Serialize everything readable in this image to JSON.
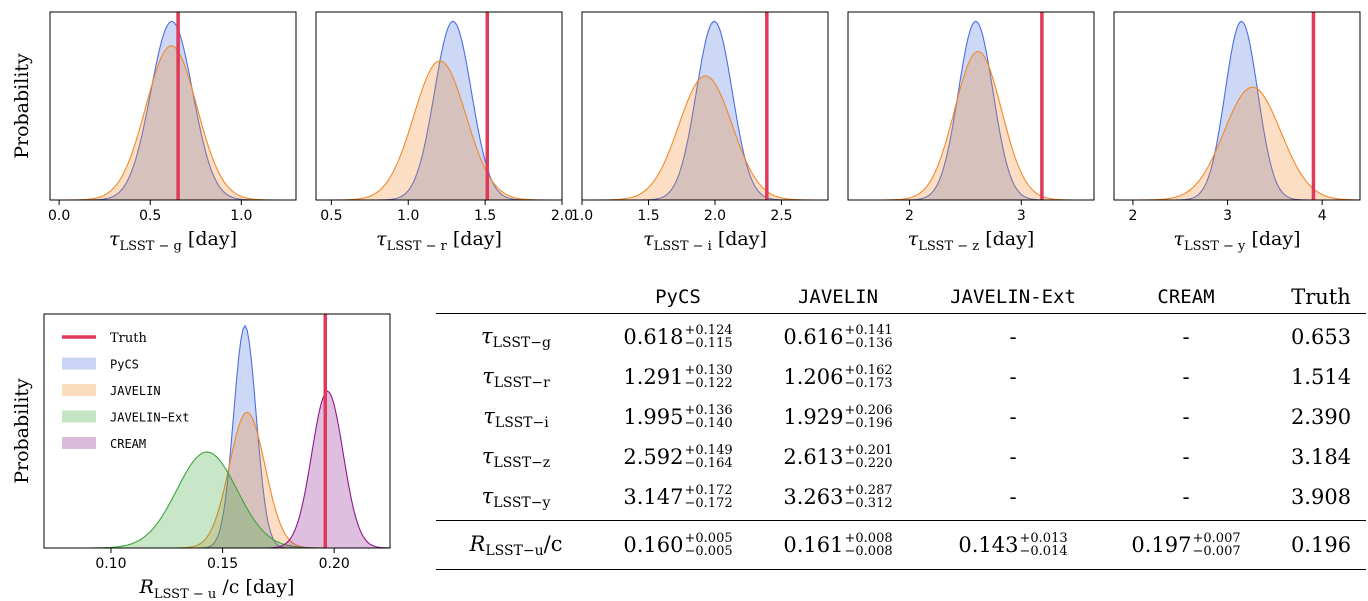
{
  "chart_data": [
    {
      "type": "area",
      "xlabel": "τ_LSST−g [day]",
      "xlabel_main": "τ",
      "xlabel_sub": "LSST − g",
      "xlabel_unit": "[day]",
      "ylabel": "Probability",
      "xlim": [
        -0.05,
        1.3
      ],
      "xticks": [
        "0.0",
        "0.5",
        "1.0"
      ],
      "truth": 0.653,
      "series": [
        {
          "name": "PyCS",
          "mean": 0.618,
          "sd": 0.115,
          "peak": 0.95
        },
        {
          "name": "JAVELIN",
          "mean": 0.616,
          "sd": 0.14,
          "peak": 0.82
        }
      ]
    },
    {
      "type": "area",
      "xlabel": "τ_LSST−r [day]",
      "xlabel_main": "τ",
      "xlabel_sub": "LSST − r",
      "xlabel_unit": "[day]",
      "xlim": [
        0.4,
        2.0
      ],
      "xticks": [
        "0.5",
        "1.0",
        "1.5",
        "2.0"
      ],
      "truth": 1.514,
      "series": [
        {
          "name": "PyCS",
          "mean": 1.291,
          "sd": 0.12,
          "peak": 0.95
        },
        {
          "name": "JAVELIN",
          "mean": 1.206,
          "sd": 0.17,
          "peak": 0.74
        }
      ]
    },
    {
      "type": "area",
      "xlabel": "τ_LSST−i [day]",
      "xlabel_main": "τ",
      "xlabel_sub": "LSST − i",
      "xlabel_unit": "[day]",
      "xlim": [
        1.0,
        2.85
      ],
      "xticks": [
        "1.0",
        "1.5",
        "2.0",
        "2.5"
      ],
      "truth": 2.39,
      "series": [
        {
          "name": "PyCS",
          "mean": 1.995,
          "sd": 0.135,
          "peak": 0.95
        },
        {
          "name": "JAVELIN",
          "mean": 1.929,
          "sd": 0.2,
          "peak": 0.66
        }
      ]
    },
    {
      "type": "area",
      "xlabel": "τ_LSST−z [day]",
      "xlabel_main": "τ",
      "xlabel_sub": "LSST − z",
      "xlabel_unit": "[day]",
      "xlim": [
        1.45,
        3.65
      ],
      "xticks": [
        "2",
        "3"
      ],
      "truth": 3.184,
      "series": [
        {
          "name": "PyCS",
          "mean": 2.592,
          "sd": 0.155,
          "peak": 0.95
        },
        {
          "name": "JAVELIN",
          "mean": 2.613,
          "sd": 0.21,
          "peak": 0.79
        }
      ]
    },
    {
      "type": "area",
      "xlabel": "τ_LSST−y [day]",
      "xlabel_main": "τ",
      "xlabel_sub": "LSST − y",
      "xlabel_unit": "[day]",
      "xlim": [
        1.8,
        4.4
      ],
      "xticks": [
        "2",
        "3",
        "4"
      ],
      "truth": 3.908,
      "series": [
        {
          "name": "PyCS",
          "mean": 3.147,
          "sd": 0.172,
          "peak": 0.95
        },
        {
          "name": "JAVELIN",
          "mean": 3.263,
          "sd": 0.3,
          "peak": 0.6
        }
      ]
    },
    {
      "type": "area",
      "xlabel": "R_LSST−u/c [day]",
      "xlabel_main": "R",
      "xlabel_sub": "LSST − u",
      "xlabel_unit": "/c [day]",
      "ylabel": "Probability",
      "xlim": [
        0.07,
        0.225
      ],
      "xticks": [
        "0.10",
        "0.15",
        "0.20"
      ],
      "truth": 0.196,
      "legend_position": "top-left",
      "series": [
        {
          "name": "PyCS",
          "mean": 0.16,
          "sd": 0.005,
          "peak": 0.95
        },
        {
          "name": "JAVELIN",
          "mean": 0.161,
          "sd": 0.008,
          "peak": 0.58
        },
        {
          "name": "JAVELIN−Ext",
          "mean": 0.143,
          "sd": 0.0135,
          "peak": 0.41
        },
        {
          "name": "CREAM",
          "mean": 0.197,
          "sd": 0.007,
          "peak": 0.67
        }
      ]
    }
  ],
  "legend": [
    {
      "label": "Truth",
      "color": "#e0395a",
      "kind": "line",
      "mono": false
    },
    {
      "label": "PyCS",
      "color": "#4c6fe0",
      "kind": "patch",
      "mono": true
    },
    {
      "label": "JAVELIN",
      "color": "#f08a2c",
      "kind": "patch",
      "mono": true
    },
    {
      "label": "JAVELIN−Ext",
      "color": "#3aa63a",
      "kind": "patch",
      "mono": true
    },
    {
      "label": "CREAM",
      "color": "#8b1a8b",
      "kind": "patch",
      "mono": true
    }
  ],
  "colors": {
    "pycs": "#4c6fe0",
    "javelin": "#f08a2c",
    "javelin_ext": "#3aa63a",
    "cream": "#8b1a8b",
    "truth": "#e0395a"
  },
  "table": {
    "headers": [
      "PyCS",
      "JAVELIN",
      "JAVELIN-Ext",
      "CREAM",
      "Truth"
    ],
    "rows": [
      {
        "label_main": "τ",
        "label_sub": "LSST−g",
        "label_suffix": "",
        "pycs": {
          "v": "0.618",
          "up": "+0.124",
          "lo": "−0.115"
        },
        "javelin": {
          "v": "0.616",
          "up": "+0.141",
          "lo": "−0.136"
        },
        "javelin_ext": "-",
        "cream": "-",
        "truth": "0.653"
      },
      {
        "label_main": "τ",
        "label_sub": "LSST−r",
        "label_suffix": "",
        "pycs": {
          "v": "1.291",
          "up": "+0.130",
          "lo": "−0.122"
        },
        "javelin": {
          "v": "1.206",
          "up": "+0.162",
          "lo": "−0.173"
        },
        "javelin_ext": "-",
        "cream": "-",
        "truth": "1.514"
      },
      {
        "label_main": "τ",
        "label_sub": "LSST−i",
        "label_suffix": "",
        "pycs": {
          "v": "1.995",
          "up": "+0.136",
          "lo": "−0.140"
        },
        "javelin": {
          "v": "1.929",
          "up": "+0.206",
          "lo": "−0.196"
        },
        "javelin_ext": "-",
        "cream": "-",
        "truth": "2.390"
      },
      {
        "label_main": "τ",
        "label_sub": "LSST−z",
        "label_suffix": "",
        "pycs": {
          "v": "2.592",
          "up": "+0.149",
          "lo": "−0.164"
        },
        "javelin": {
          "v": "2.613",
          "up": "+0.201",
          "lo": "−0.220"
        },
        "javelin_ext": "-",
        "cream": "-",
        "truth": "3.184"
      },
      {
        "label_main": "τ",
        "label_sub": "LSST−y",
        "label_suffix": "",
        "pycs": {
          "v": "3.147",
          "up": "+0.172",
          "lo": "−0.172"
        },
        "javelin": {
          "v": "3.263",
          "up": "+0.287",
          "lo": "−0.312"
        },
        "javelin_ext": "-",
        "cream": "-",
        "truth": "3.908"
      },
      {
        "label_main": "R",
        "label_sub": "LSST−u",
        "label_suffix": "/c",
        "pycs": {
          "v": "0.160",
          "up": "+0.005",
          "lo": "−0.005"
        },
        "javelin": {
          "v": "0.161",
          "up": "+0.008",
          "lo": "−0.008"
        },
        "javelin_ext": {
          "v": "0.143",
          "up": "+0.013",
          "lo": "−0.014"
        },
        "cream": {
          "v": "0.197",
          "up": "+0.007",
          "lo": "−0.007"
        },
        "truth": "0.196"
      }
    ]
  }
}
